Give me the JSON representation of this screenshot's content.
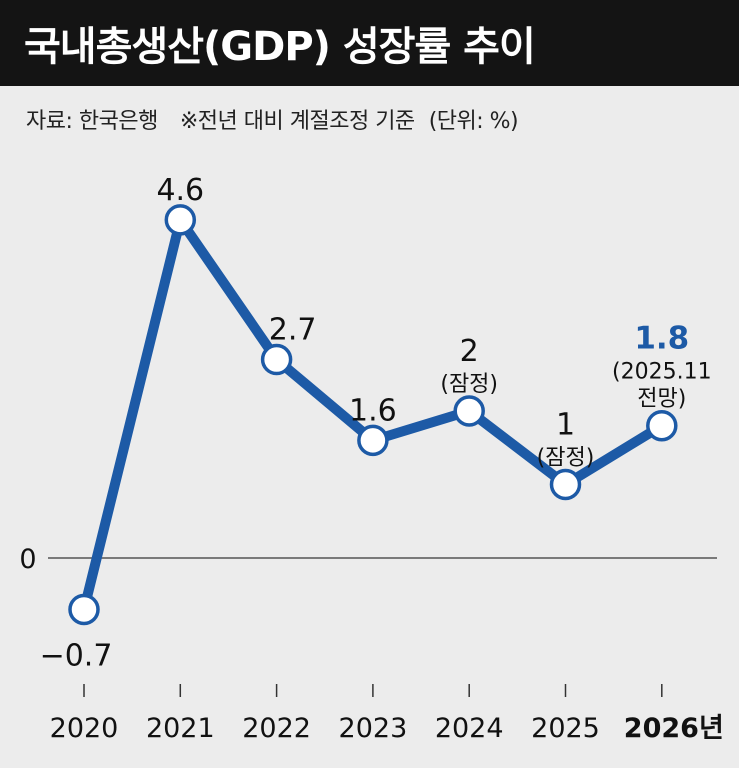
{
  "chart_data": {
    "type": "line",
    "title": "국내총생산(GDP) 성장률 추이",
    "source": "자료: 한국은행",
    "note": "※전년 대비 계절조정 기준",
    "unit": "(단위: %)",
    "categories": [
      "2020",
      "2021",
      "2022",
      "2023",
      "2024",
      "2025",
      "2026년"
    ],
    "values": [
      -0.7,
      4.6,
      2.7,
      1.6,
      2,
      1,
      1.8
    ],
    "value_labels": [
      "−0.7",
      "4.6",
      "2.7",
      "1.6",
      "2",
      "1",
      "1.8"
    ],
    "value_notes": [
      [],
      [],
      [],
      [],
      [
        "(잠정)"
      ],
      [
        "(잠정)"
      ],
      [
        "(2025.11",
        "전망)"
      ]
    ],
    "zero_label": "0",
    "highlight_index": 6,
    "ylim": [
      -1.5,
      5.3
    ],
    "grid": false,
    "colors": {
      "line": "#1d5aa6",
      "highlight": "#1d5aa6",
      "marker_fill": "#ffffff",
      "title_bg": "#141414",
      "background": "#ececec"
    }
  }
}
